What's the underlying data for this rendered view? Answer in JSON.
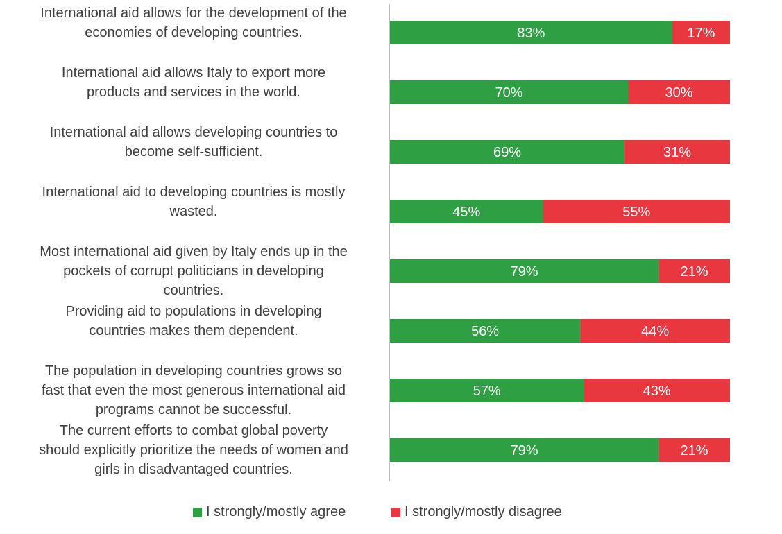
{
  "chart_data": {
    "type": "bar",
    "orientation": "horizontal",
    "stacked": true,
    "percent_stacked": true,
    "xlim": [
      0,
      100
    ],
    "grid": false,
    "legend_position": "bottom",
    "categories": [
      [
        "International aid allows for the development of the",
        "economies of developing countries."
      ],
      [
        "International aid allows Italy to export more",
        "products and services in the world."
      ],
      [
        "International aid allows developing countries to",
        "become self-sufficient."
      ],
      [
        "International aid to developing countries is mostly",
        "wasted."
      ],
      [
        "Most international aid given by Italy ends up in the",
        "pockets of corrupt politicians in developing",
        "countries."
      ],
      [
        "Providing aid to populations in developing",
        "countries makes them dependent."
      ],
      [
        "The population in developing countries grows so",
        "fast that even the most generous international aid",
        "programs cannot be successful."
      ],
      [
        "The current efforts to combat global poverty",
        "should explicitly prioritize the needs of women and",
        "girls in disadvantaged countries."
      ]
    ],
    "series": [
      {
        "name": "I strongly/mostly agree",
        "color": "#2ea043",
        "values": [
          83,
          70,
          69,
          45,
          79,
          56,
          57,
          79
        ],
        "labels": [
          "83%",
          "70%",
          "69%",
          "45%",
          "79%",
          "56%",
          "57%",
          "79%"
        ]
      },
      {
        "name": "I strongly/mostly disagree",
        "color": "#e8373f",
        "values": [
          17,
          30,
          31,
          55,
          21,
          44,
          43,
          21
        ],
        "labels": [
          "17%",
          "30%",
          "31%",
          "55%",
          "21%",
          "44%",
          "43%",
          "21%"
        ]
      }
    ]
  }
}
